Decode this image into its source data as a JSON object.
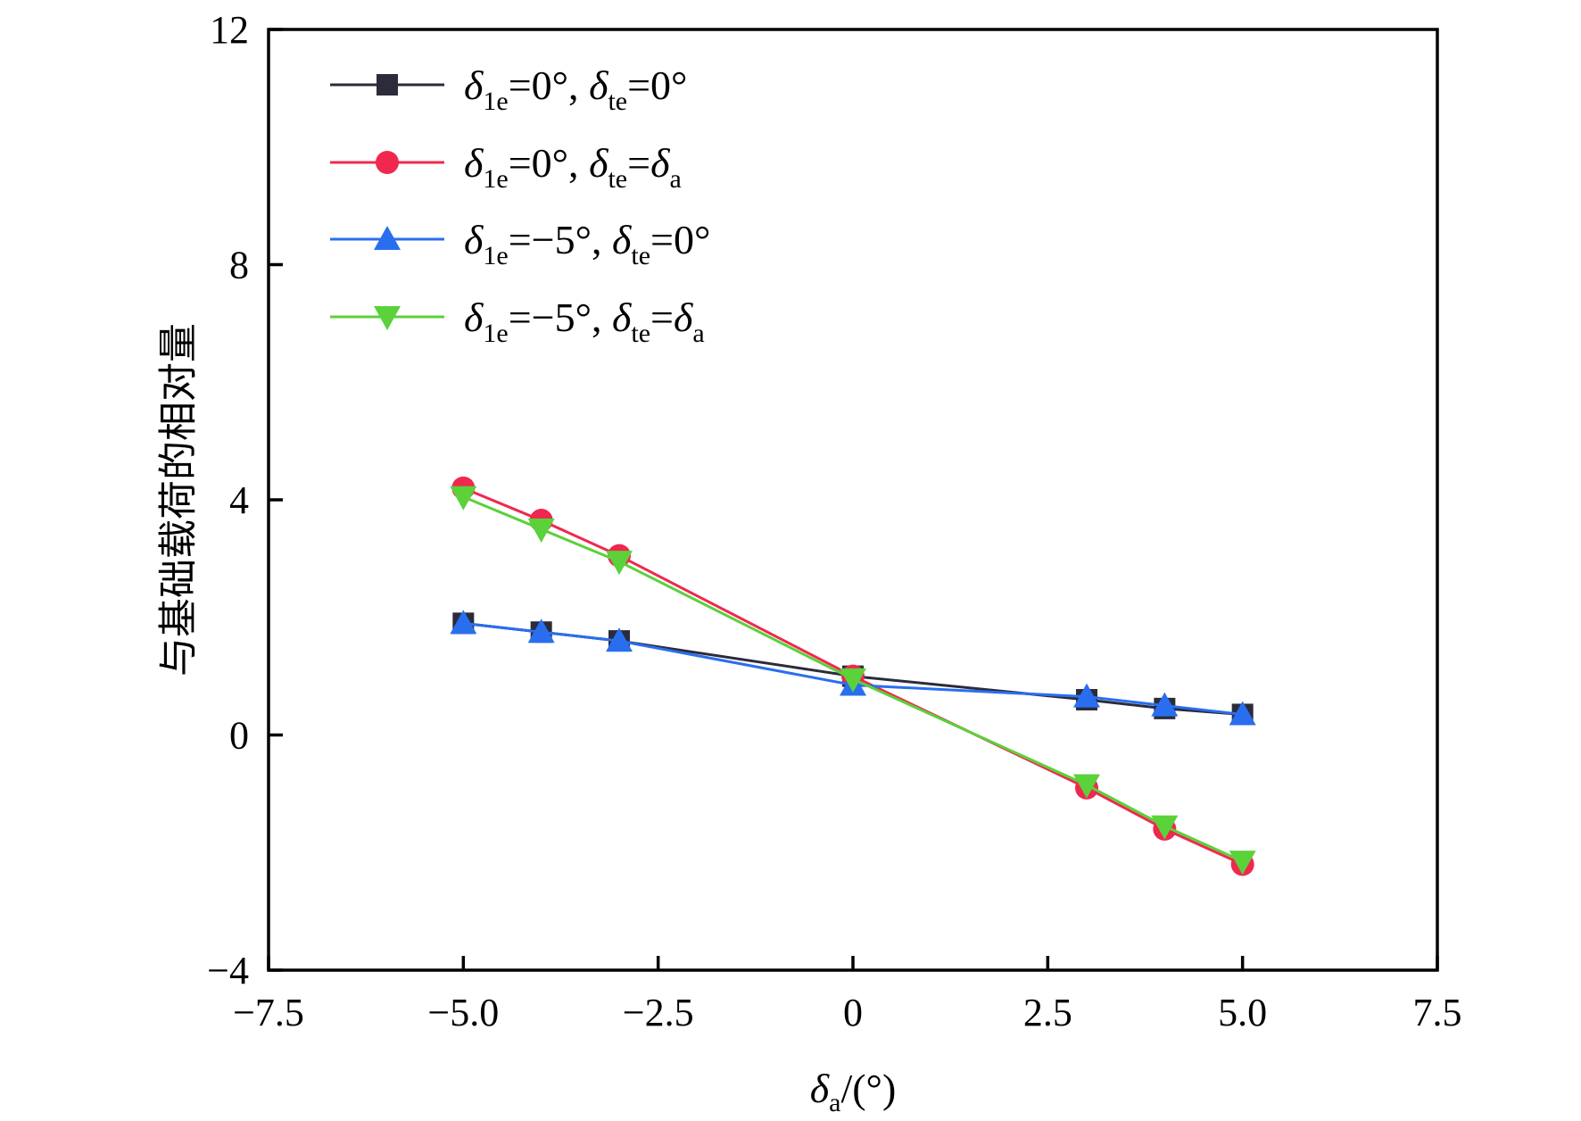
{
  "chart_data": {
    "type": "line",
    "xlabel": "δa/(°)",
    "ylabel": "与基础载荷的相对量",
    "xlim": [
      -7.5,
      7.5
    ],
    "ylim": [
      -4,
      12
    ],
    "xticks": [
      -7.5,
      -5.0,
      -2.5,
      0,
      2.5,
      5.0,
      7.5
    ],
    "xtick_labels": [
      "−7.5",
      "−5.0",
      "−2.5",
      "0",
      "2.5",
      "5.0",
      "7.5"
    ],
    "yticks": [
      -4,
      0,
      4,
      8,
      12
    ],
    "ytick_labels": [
      "−4",
      "0",
      "4",
      "8",
      "12"
    ],
    "grid": false,
    "legend_position": "top-left",
    "series": [
      {
        "name": "δ1e=0°, δte=0°",
        "color": "#2b2b3b",
        "marker": "square",
        "x": [
          -5,
          -4,
          -3,
          0,
          3,
          4,
          5
        ],
        "y": [
          1.9,
          1.75,
          1.6,
          1.0,
          0.6,
          0.45,
          0.35
        ]
      },
      {
        "name": "δ1e=0°, δte=δa",
        "color": "#f0284f",
        "marker": "circle",
        "x": [
          -5,
          -4,
          -3,
          0,
          3,
          4,
          5
        ],
        "y": [
          4.2,
          3.65,
          3.05,
          1.0,
          -0.9,
          -1.6,
          -2.2
        ]
      },
      {
        "name": "δ1e=−5°, δte=0°",
        "color": "#2a6ef0",
        "marker": "triangle-up",
        "x": [
          -5,
          -4,
          -3,
          0,
          3,
          4,
          5
        ],
        "y": [
          1.9,
          1.75,
          1.6,
          0.85,
          0.65,
          0.5,
          0.35
        ]
      },
      {
        "name": "δ1e=−5°, δte=δa",
        "color": "#5bd13a",
        "marker": "triangle-down",
        "x": [
          -5,
          -4,
          -3,
          0,
          3,
          4,
          5
        ],
        "y": [
          4.05,
          3.5,
          2.95,
          0.95,
          -0.85,
          -1.55,
          -2.15
        ]
      }
    ]
  },
  "legend": [
    {
      "main": "δ",
      "sub1": "1e",
      "eq1": "=0°, ",
      "sym2": "δ",
      "sub2": "te",
      "eq2": "=0°",
      "sub3": ""
    },
    {
      "main": "δ",
      "sub1": "1e",
      "eq1": "=0°, ",
      "sym2": "δ",
      "sub2": "te",
      "eq2": "=δ",
      "sub3": "a"
    },
    {
      "main": "δ",
      "sub1": "1e",
      "eq1": "=−5°, ",
      "sym2": "δ",
      "sub2": "te",
      "eq2": "=0°",
      "sub3": ""
    },
    {
      "main": "δ",
      "sub1": "1e",
      "eq1": "=−5°, ",
      "sym2": "δ",
      "sub2": "te",
      "eq2": "=δ",
      "sub3": "a"
    }
  ],
  "xlabel_parts": {
    "sym": "δ",
    "sub": "a",
    "rest": "/(°)"
  }
}
